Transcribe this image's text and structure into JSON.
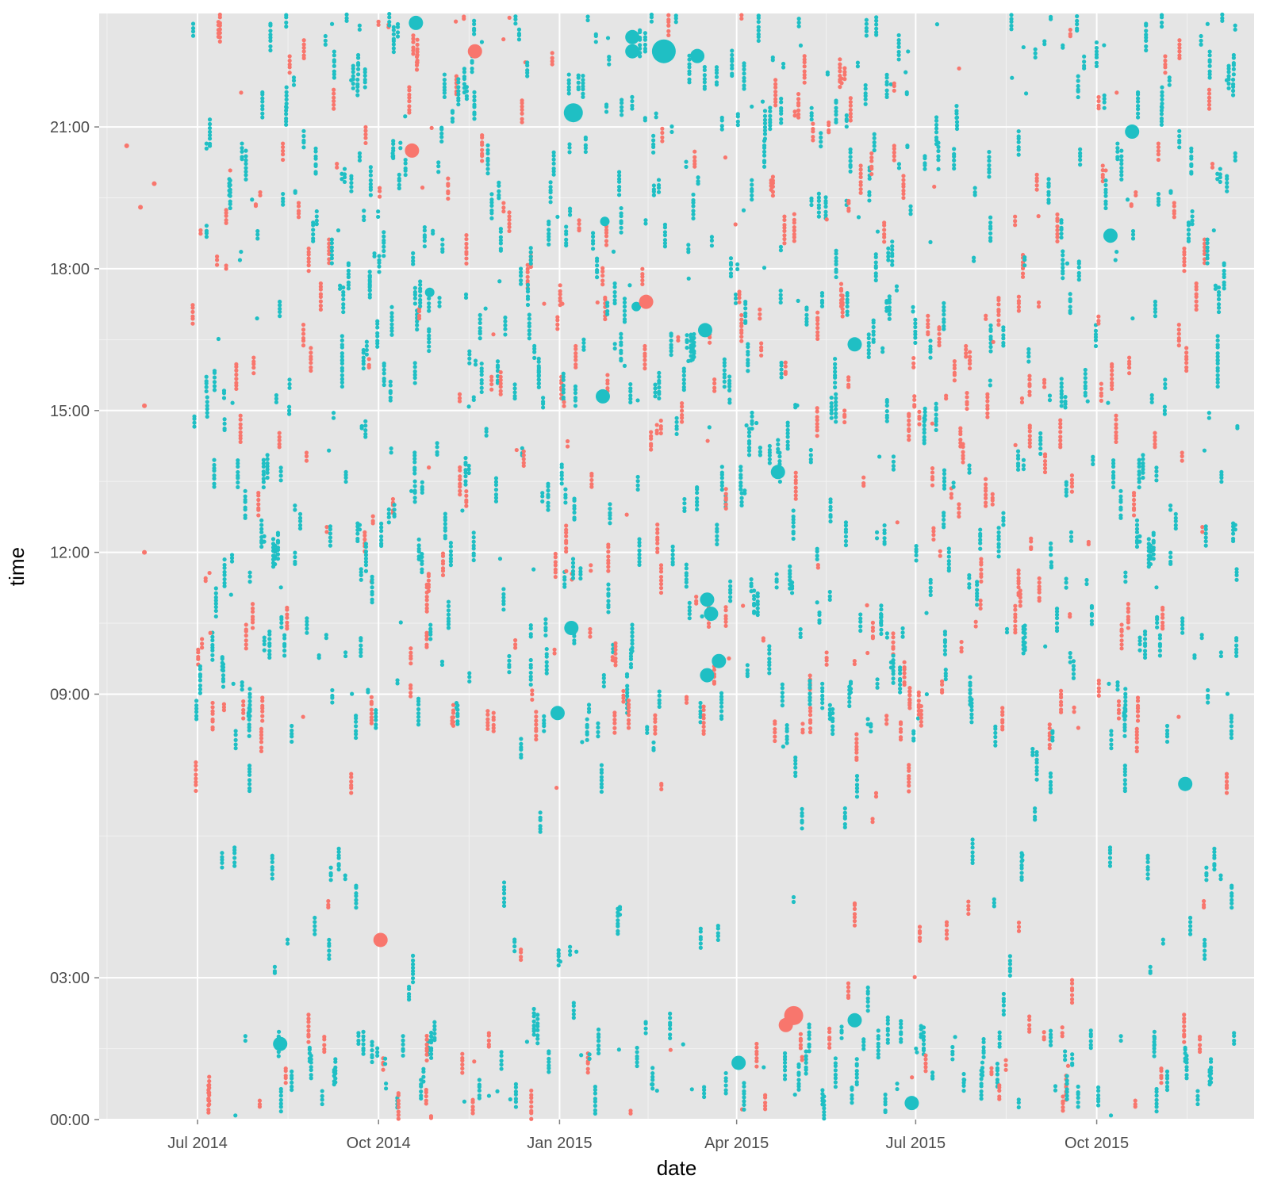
{
  "chart_data": {
    "type": "scatter",
    "title": "",
    "xlabel": "date",
    "ylabel": "time",
    "x_ticks": [
      "Jul 2014",
      "Oct 2014",
      "Jan 2015",
      "Apr 2015",
      "Jul 2015",
      "Oct 2015"
    ],
    "x_tick_dates": [
      "2014-07-01",
      "2014-10-01",
      "2015-01-01",
      "2015-04-01",
      "2015-07-01",
      "2015-10-01"
    ],
    "y_ticks": [
      "00:00",
      "03:00",
      "09:00",
      "12:00",
      "15:00",
      "18:00",
      "21:00"
    ],
    "y_tick_hours": [
      0,
      3,
      9,
      12,
      15,
      18,
      21
    ],
    "xlim": [
      "2014-05-12",
      "2015-12-20"
    ],
    "ylim_hours": [
      0,
      23.4
    ],
    "grid": true,
    "legend": "none",
    "colors": {
      "panel": "#e5e5e5",
      "grid": "#ffffff",
      "series_a": "#f8766d",
      "series_b": "#1fbfc4"
    },
    "highlights": [
      {
        "date": "2015-01-08",
        "time": "21.3",
        "series": "b",
        "size": 3
      },
      {
        "date": "2015-02-23",
        "time": "22.6",
        "series": "b",
        "size": 4
      },
      {
        "date": "2015-03-12",
        "time": "22.5",
        "series": "b",
        "size": 2
      },
      {
        "date": "2015-02-07",
        "time": "22.6",
        "series": "b",
        "size": 2
      },
      {
        "date": "2015-02-07",
        "time": "22.9",
        "series": "b",
        "size": 2
      },
      {
        "date": "2014-11-19",
        "time": "22.6",
        "series": "a",
        "size": 2
      },
      {
        "date": "2014-10-20",
        "time": "23.2",
        "series": "b",
        "size": 2
      },
      {
        "date": "2015-01-24",
        "time": "19.0",
        "series": "b",
        "size": 1
      },
      {
        "date": "2015-10-08",
        "time": "18.7",
        "series": "b",
        "size": 2
      },
      {
        "date": "2015-01-23",
        "time": "15.3",
        "series": "b",
        "size": 2
      },
      {
        "date": "2014-10-27",
        "time": "17.5",
        "series": "b",
        "size": 1
      },
      {
        "date": "2015-02-09",
        "time": "17.2",
        "series": "b",
        "size": 1
      },
      {
        "date": "2015-03-16",
        "time": "16.7",
        "series": "b",
        "size": 2
      },
      {
        "date": "2015-05-31",
        "time": "16.4",
        "series": "b",
        "size": 2
      },
      {
        "date": "2015-03-17",
        "time": "11.0",
        "series": "b",
        "size": 2
      },
      {
        "date": "2015-03-19",
        "time": "10.7",
        "series": "b",
        "size": 2
      },
      {
        "date": "2015-03-23",
        "time": "9.7",
        "series": "b",
        "size": 2
      },
      {
        "date": "2015-03-17",
        "time": "9.4",
        "series": "b",
        "size": 2
      },
      {
        "date": "2015-01-07",
        "time": "10.4",
        "series": "b",
        "size": 2
      },
      {
        "date": "2014-12-31",
        "time": "8.6",
        "series": "b",
        "size": 2
      },
      {
        "date": "2015-04-22",
        "time": "13.7",
        "series": "b",
        "size": 2
      },
      {
        "date": "2015-04-30",
        "time": "2.2",
        "series": "a",
        "size": 3
      },
      {
        "date": "2015-04-26",
        "time": "2.0",
        "series": "a",
        "size": 2
      },
      {
        "date": "2015-05-31",
        "time": "2.1",
        "series": "b",
        "size": 2
      },
      {
        "date": "2014-10-02",
        "time": "3.8",
        "series": "a",
        "size": 2
      },
      {
        "date": "2014-08-12",
        "time": "1.6",
        "series": "b",
        "size": 2
      },
      {
        "date": "2015-06-29",
        "time": "0.35",
        "series": "b",
        "size": 2
      },
      {
        "date": "2015-04-02",
        "time": "1.2",
        "series": "b",
        "size": 2
      },
      {
        "date": "2015-02-14",
        "time": "17.3",
        "series": "a",
        "size": 2
      },
      {
        "date": "2014-10-18",
        "time": "20.5",
        "series": "a",
        "size": 2
      },
      {
        "date": "2015-10-19",
        "time": "20.9",
        "series": "b",
        "size": 2
      },
      {
        "date": "2015-11-15",
        "time": "7.1",
        "series": "b",
        "size": 2
      }
    ]
  }
}
